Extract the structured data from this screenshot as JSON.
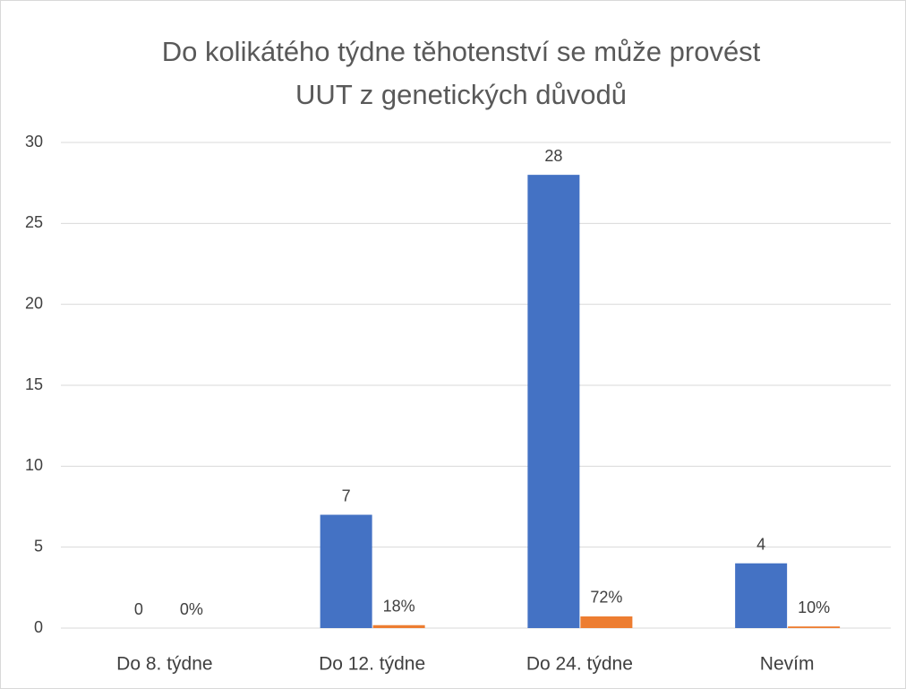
{
  "chart_data": {
    "type": "bar",
    "title": [
      "Do kolikátého týdne těhotenství se může provést",
      "UUT z genetických důvodů"
    ],
    "categories": [
      "Do 8. týdne",
      "Do 12. týdne",
      "Do 24. týdne",
      "Nevím"
    ],
    "series": [
      {
        "color": "#4472c4",
        "values": [
          0,
          7,
          28,
          4
        ]
      },
      {
        "color": "#ed7d31",
        "values": [
          0,
          0.18,
          0.72,
          0.1
        ],
        "value_labels": [
          "0%",
          "18%",
          "72%",
          "10%"
        ]
      }
    ],
    "ylim": [
      0,
      30
    ],
    "yticks": [
      0,
      5,
      10,
      15,
      20,
      25,
      30
    ],
    "grid": true
  }
}
